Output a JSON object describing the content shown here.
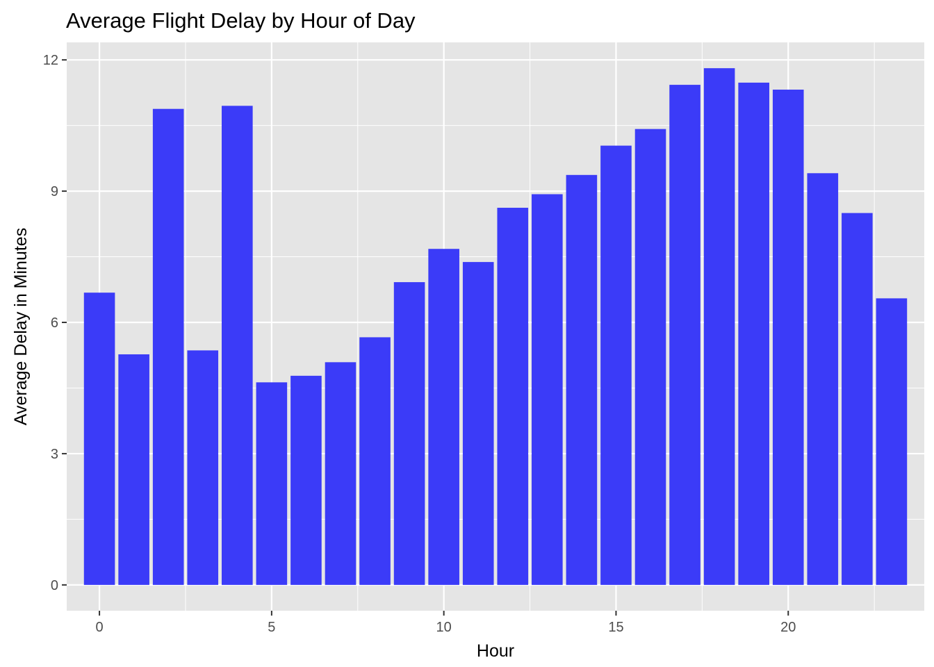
{
  "chart_data": {
    "type": "bar",
    "title": "Average Flight Delay by Hour of Day",
    "xlabel": "Hour",
    "ylabel": "Average Delay in Minutes",
    "x": [
      0,
      1,
      2,
      3,
      4,
      5,
      6,
      7,
      8,
      9,
      10,
      11,
      12,
      13,
      14,
      15,
      16,
      17,
      18,
      19,
      20,
      21,
      22,
      23
    ],
    "values": [
      6.68,
      5.27,
      10.88,
      5.36,
      10.95,
      4.63,
      4.78,
      5.09,
      5.66,
      6.92,
      7.68,
      7.38,
      8.62,
      8.93,
      9.37,
      10.04,
      10.42,
      11.43,
      11.81,
      11.48,
      11.32,
      9.41,
      8.5,
      6.55
    ],
    "xticks": [
      0,
      5,
      10,
      15,
      20
    ],
    "yticks": [
      0,
      3,
      6,
      9,
      12
    ],
    "xlim": [
      -0.95,
      23.95
    ],
    "ylim": [
      -0.59,
      12.4
    ],
    "grid": true,
    "legend": "none",
    "colors": {
      "bar": "#3b3bf8",
      "panel": "#e5e5e5",
      "grid": "#ffffff"
    }
  }
}
